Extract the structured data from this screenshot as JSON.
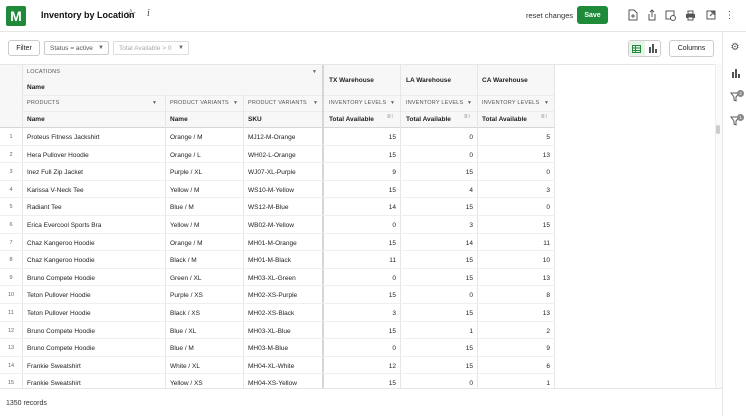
{
  "app": {
    "logo_letter": "M",
    "title": "Inventory by Location",
    "reset_label": "reset changes",
    "save_label": "Save"
  },
  "toolbar": {
    "filter_label": "Filter",
    "chip_status": "Status = active",
    "chip_total": "Total Available > 0",
    "columns_label": "Columns"
  },
  "grid": {
    "group_locations": "LOCATIONS",
    "group_locations_sub": "Name",
    "col_products_group": "PRODUCTS",
    "col_variants_group": "PRODUCT VARIANTS",
    "col_sku_group": "PRODUCT VARIANTS",
    "col_products": "Name",
    "col_variants": "Name",
    "col_sku": "SKU",
    "warehouses": [
      "TX Warehouse",
      "LA Warehouse",
      "CA Warehouse"
    ],
    "inv_group": "INVENTORY LEVELS",
    "inv_field": "Total Available",
    "rows": [
      {
        "n": "1",
        "name": "Proteus Fitness Jackshirt",
        "variant": "Orange / M",
        "sku": "MJ12-M-Orange",
        "tx": "15",
        "la": "0",
        "ca": "5"
      },
      {
        "n": "2",
        "name": "Hera Pullover Hoodie",
        "variant": "Orange / L",
        "sku": "WH02-L-Orange",
        "tx": "15",
        "la": "0",
        "ca": "13"
      },
      {
        "n": "3",
        "name": "Inez Full Zip Jacket",
        "variant": "Purple / XL",
        "sku": "WJ07-XL-Purple",
        "tx": "9",
        "la": "15",
        "ca": "0"
      },
      {
        "n": "4",
        "name": "Karissa V-Neck Tee",
        "variant": "Yellow / M",
        "sku": "WS10-M-Yellow",
        "tx": "15",
        "la": "4",
        "ca": "3"
      },
      {
        "n": "5",
        "name": "Radiant Tee",
        "variant": "Blue / M",
        "sku": "WS12-M-Blue",
        "tx": "14",
        "la": "15",
        "ca": "0"
      },
      {
        "n": "6",
        "name": "Erica Evercool Sports Bra",
        "variant": "Yellow / M",
        "sku": "WB02-M-Yellow",
        "tx": "0",
        "la": "3",
        "ca": "15"
      },
      {
        "n": "7",
        "name": "Chaz Kangeroo Hoodie",
        "variant": "Orange / M",
        "sku": "MH01-M-Orange",
        "tx": "15",
        "la": "14",
        "ca": "11"
      },
      {
        "n": "8",
        "name": "Chaz Kangeroo Hoodie",
        "variant": "Black / M",
        "sku": "MH01-M-Black",
        "tx": "11",
        "la": "15",
        "ca": "10"
      },
      {
        "n": "9",
        "name": "Bruno Compete Hoodie",
        "variant": "Green / XL",
        "sku": "MH03-XL-Green",
        "tx": "0",
        "la": "15",
        "ca": "13"
      },
      {
        "n": "10",
        "name": "Teton Pullover Hoodie",
        "variant": "Purple / XS",
        "sku": "MH02-XS-Purple",
        "tx": "15",
        "la": "0",
        "ca": "8"
      },
      {
        "n": "11",
        "name": "Teton Pullover Hoodie",
        "variant": "Black / XS",
        "sku": "MH02-XS-Black",
        "tx": "3",
        "la": "15",
        "ca": "13"
      },
      {
        "n": "12",
        "name": "Bruno Compete Hoodie",
        "variant": "Blue / XL",
        "sku": "MH03-XL-Blue",
        "tx": "15",
        "la": "1",
        "ca": "2"
      },
      {
        "n": "13",
        "name": "Bruno Compete Hoodie",
        "variant": "Blue / M",
        "sku": "MH03-M-Blue",
        "tx": "0",
        "la": "15",
        "ca": "9"
      },
      {
        "n": "14",
        "name": "Frankie  Sweatshirt",
        "variant": "White / XL",
        "sku": "MH04-XL-White",
        "tx": "12",
        "la": "15",
        "ca": "6"
      },
      {
        "n": "15",
        "name": "Frankie  Sweatshirt",
        "variant": "Yellow / XS",
        "sku": "MH04-XS-Yellow",
        "tx": "15",
        "la": "0",
        "ca": "1"
      }
    ]
  },
  "footer": {
    "records": "1350 records"
  },
  "icons": {
    "star": "star-outline-icon",
    "info": "info-icon",
    "header_actions": [
      "add-document-icon",
      "share-icon",
      "schedule-icon",
      "print-icon",
      "open-external-icon",
      "more-vertical-icon"
    ],
    "rail": [
      "settings-icon",
      "chart-icon",
      "filter-icon",
      "filter-settings-icon"
    ]
  },
  "rail": {
    "filter_badge": "2",
    "filter_settings_badge": "1"
  },
  "colors": {
    "brand": "#1f8a3a"
  }
}
